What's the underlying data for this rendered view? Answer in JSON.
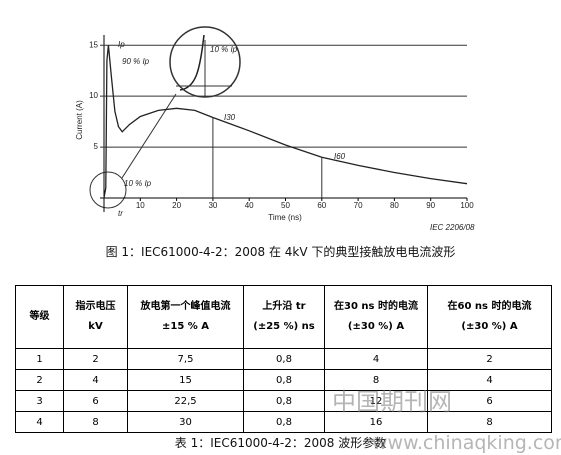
{
  "chart_data": {
    "type": "line",
    "xlabel": "Time (ns)",
    "ylabel": "Current (A)",
    "x": [
      0,
      0.5,
      0.8,
      1.2,
      2,
      3,
      4,
      5,
      7,
      10,
      15,
      20,
      25,
      30,
      40,
      50,
      60,
      70,
      80,
      90,
      100
    ],
    "values": [
      0,
      1,
      13.5,
      15,
      12,
      8.5,
      7,
      6.5,
      7.2,
      8,
      8.6,
      8.8,
      8.6,
      7.9,
      6.6,
      5.2,
      4,
      3.2,
      2.5,
      1.9,
      1.4
    ],
    "color": "#222222",
    "xlim": [
      0,
      100
    ],
    "xticks": [
      10,
      20,
      30,
      40,
      50,
      60,
      70,
      80,
      90,
      100
    ],
    "ylim": [
      0,
      16
    ],
    "yticks": [
      5,
      10,
      15
    ],
    "grid": true,
    "annotations": [
      "Ip",
      "90 % Ip",
      "I30",
      "I60",
      "10 % Ip",
      "tr",
      "10 % Ip",
      "IEC  2206/08"
    ]
  },
  "figure_caption": "图 1：IEC61000-4-2：2008 在 4kV 下的典型接触放电电流波形",
  "table": {
    "header": [
      [
        "等级"
      ],
      [
        "指示电压",
        "kV"
      ],
      [
        "放电第一个峰值电流",
        "±15 % A"
      ],
      [
        "上升沿  tr",
        "(±25 %) ns"
      ],
      [
        "在30 ns  时的电流",
        "(±30 %) A"
      ],
      [
        "在60 ns  时的电流",
        "(±30 %) A"
      ]
    ],
    "rows": [
      [
        "1",
        "2",
        "7,5",
        "0,8",
        "4",
        "2"
      ],
      [
        "2",
        "4",
        "15",
        "0,8",
        "8",
        "4"
      ],
      [
        "3",
        "6",
        "22,5",
        "0,8",
        "12",
        "6"
      ],
      [
        "4",
        "8",
        "30",
        "0,8",
        "16",
        "8"
      ]
    ]
  },
  "table_caption": "表 1：IEC61000-4-2：2008 波形参数",
  "watermark": [
    "中国期刊网",
    "www.chinaqking.com"
  ]
}
